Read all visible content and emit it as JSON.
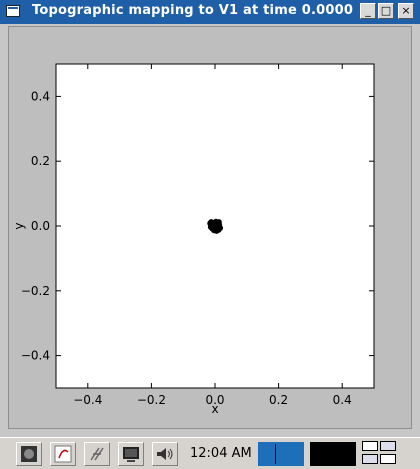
{
  "window": {
    "title": "Topographic mapping to V1 at time 0.0000",
    "buttons": {
      "minimize_label": "_",
      "maximize_label": "□",
      "close_label": "×"
    }
  },
  "chart_data": {
    "type": "scatter",
    "xlabel": "x",
    "ylabel": "y",
    "xlim": [
      -0.5,
      0.5
    ],
    "ylim": [
      -0.5,
      0.5
    ],
    "x_ticks": [
      -0.4,
      -0.2,
      0.0,
      0.2,
      0.4
    ],
    "y_ticks": [
      -0.4,
      -0.2,
      0.0,
      0.2,
      0.4
    ],
    "x_tick_labels": [
      "−0.4",
      "−0.2",
      "0.0",
      "0.2",
      "0.4"
    ],
    "y_tick_labels": [
      "−0.4",
      "−0.2",
      "0.0",
      "0.2",
      "0.4"
    ],
    "grid": false,
    "points": [
      {
        "x": 0.0,
        "y": 0.0
      },
      {
        "x": 0.006,
        "y": 0.003
      },
      {
        "x": -0.006,
        "y": 0.004
      },
      {
        "x": 0.004,
        "y": -0.006
      },
      {
        "x": -0.004,
        "y": -0.005
      },
      {
        "x": 0.01,
        "y": -0.001
      },
      {
        "x": -0.01,
        "y": 0.0
      },
      {
        "x": 0.001,
        "y": 0.01
      },
      {
        "x": -0.001,
        "y": -0.01
      },
      {
        "x": 0.008,
        "y": 0.008
      },
      {
        "x": -0.008,
        "y": 0.007
      },
      {
        "x": 0.007,
        "y": -0.009
      },
      {
        "x": -0.008,
        "y": -0.008
      },
      {
        "x": 0.013,
        "y": 0.004
      },
      {
        "x": -0.013,
        "y": -0.003
      },
      {
        "x": 0.003,
        "y": 0.013
      },
      {
        "x": -0.003,
        "y": -0.013
      },
      {
        "x": 0.016,
        "y": -0.006
      },
      {
        "x": -0.015,
        "y": 0.008
      },
      {
        "x": 0.011,
        "y": -0.012
      },
      {
        "x": -0.012,
        "y": 0.012
      },
      {
        "x": 0.005,
        "y": -0.015
      },
      {
        "x": 0.012,
        "y": 0.012
      }
    ],
    "point_color": "#000000"
  },
  "taskbar": {
    "clock": "12:04 AM",
    "apps": [
      {
        "icon": "desktop-icon"
      },
      {
        "icon": "browser-icon"
      },
      {
        "icon": "tools-icon"
      },
      {
        "icon": "terminal-icon"
      },
      {
        "icon": "volume-icon"
      }
    ],
    "cpu_monitor_color": "#1c6fb8"
  }
}
